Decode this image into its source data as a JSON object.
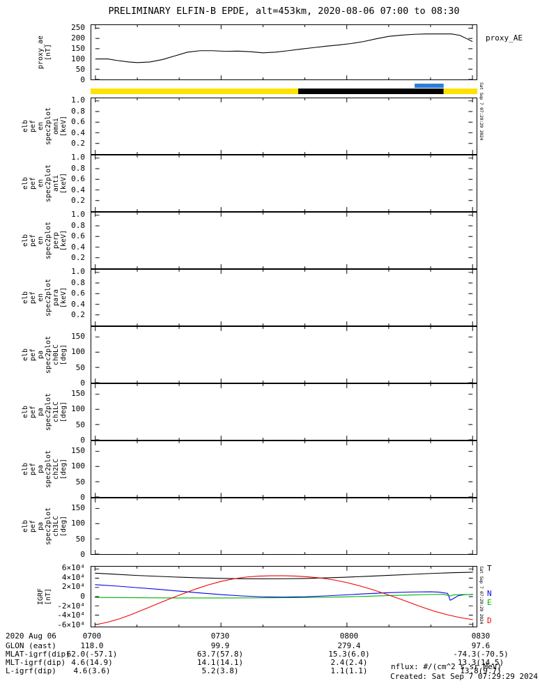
{
  "title": "PRELIMINARY ELFIN-B EPDE, alt=453km, 2020-08-06 07:00 to 08:30",
  "vertical_timestamp": "Sat Sep 7 07:29:29 2024",
  "footer": {
    "date": "2020 Aug 06",
    "xticks": [
      "0700",
      "0730",
      "0800",
      "0830"
    ],
    "rows": [
      {
        "label": "GLON (east)",
        "values": [
          "118.0",
          "99.9",
          "279.4",
          "97.6"
        ]
      },
      {
        "label": "MLAT-igrf(dip)",
        "values": [
          "62.0(-57.1)",
          "63.7(57.8)",
          "15.3(6.0)",
          "-74.3(-70.5)"
        ]
      },
      {
        "label": "MLT-igrf(dip)",
        "values": [
          "4.6(14.9)",
          "14.1(14.1)",
          "2.4(2.4)",
          "13.3(14.5)"
        ]
      },
      {
        "label": "L-igrf(dip)",
        "values": [
          "4.6(3.6)",
          "5.2(3.8)",
          "1.1(1.1)",
          "13.8(9.7)"
        ]
      }
    ],
    "nflux": "nflux: #/(cm^2 s sr MeV)",
    "created": "Created: Sat Sep  7 07:29:29 2024"
  },
  "chart_data": [
    {
      "id": "proxy_ae",
      "type": "line",
      "title": "proxy_AE",
      "ylabel": "proxy_ae [nT]",
      "xrange": [
        0,
        90
      ],
      "ylim": [
        0,
        265
      ],
      "xticks": [
        0,
        30,
        60,
        90
      ],
      "xticks_minor": [
        10,
        20,
        40,
        50,
        70,
        80
      ],
      "yticks": [
        {
          "v": 0,
          "l": "0"
        },
        {
          "v": 50,
          "l": "50"
        },
        {
          "v": 100,
          "l": "100"
        },
        {
          "v": 150,
          "l": "150"
        },
        {
          "v": 200,
          "l": "200"
        },
        {
          "v": 250,
          "l": "250"
        }
      ],
      "series": [
        {
          "name": "proxy_AE",
          "color": "#000000",
          "x": [
            0,
            3,
            5,
            8,
            10,
            13,
            16,
            19,
            22,
            25,
            28,
            31,
            34,
            37,
            40,
            43,
            46,
            49,
            52,
            55,
            58,
            61,
            64,
            67,
            70,
            73,
            76,
            79,
            82,
            85,
            87,
            89,
            90
          ],
          "y": [
            100,
            100,
            93,
            85,
            82,
            85,
            97,
            115,
            133,
            140,
            140,
            137,
            138,
            135,
            130,
            133,
            140,
            148,
            155,
            162,
            168,
            175,
            185,
            198,
            210,
            216,
            220,
            222,
            222,
            222,
            215,
            195,
            185
          ]
        }
      ]
    },
    {
      "id": "status_bar",
      "type": "segment-bar",
      "segments": [
        {
          "color": "#ffe100",
          "from": 0.0,
          "to": 0.537
        },
        {
          "color": "#000000",
          "from": 0.537,
          "to": 0.913
        },
        {
          "color": "#ffe100",
          "from": 0.913,
          "to": 1.0
        }
      ],
      "marker": {
        "color": "#2a7fd8",
        "from": 0.838,
        "to": 0.913
      }
    },
    {
      "id": "en_omni",
      "type": "line",
      "ylabel": "elb pef en spec2plot omni [keV]",
      "xrange": [
        0,
        90
      ],
      "ylim": [
        0,
        1.05
      ],
      "xticks": [
        0,
        30,
        60,
        90
      ],
      "xticks_minor": [
        10,
        20,
        40,
        50,
        70,
        80
      ],
      "yticks": [
        {
          "v": 0.2,
          "l": "0.2"
        },
        {
          "v": 0.4,
          "l": "0.4"
        },
        {
          "v": 0.6,
          "l": "0.6"
        },
        {
          "v": 0.8,
          "l": "0.8"
        },
        {
          "v": 1.0,
          "l": "1.0"
        }
      ],
      "series": []
    },
    {
      "id": "en_anti",
      "type": "line",
      "ylabel": "elb pef en spec2plot anti [keV]",
      "xrange": [
        0,
        90
      ],
      "ylim": [
        0,
        1.05
      ],
      "xticks": [
        0,
        30,
        60,
        90
      ],
      "xticks_minor": [
        10,
        20,
        40,
        50,
        70,
        80
      ],
      "yticks": [
        {
          "v": 0.2,
          "l": "0.2"
        },
        {
          "v": 0.4,
          "l": "0.4"
        },
        {
          "v": 0.6,
          "l": "0.6"
        },
        {
          "v": 0.8,
          "l": "0.8"
        },
        {
          "v": 1.0,
          "l": "1.0"
        }
      ],
      "series": []
    },
    {
      "id": "en_perp",
      "type": "line",
      "ylabel": "elb pef en spec2plot perp [keV]",
      "xrange": [
        0,
        90
      ],
      "ylim": [
        0,
        1.05
      ],
      "xticks": [
        0,
        30,
        60,
        90
      ],
      "xticks_minor": [
        10,
        20,
        40,
        50,
        70,
        80
      ],
      "yticks": [
        {
          "v": 0.2,
          "l": "0.2"
        },
        {
          "v": 0.4,
          "l": "0.4"
        },
        {
          "v": 0.6,
          "l": "0.6"
        },
        {
          "v": 0.8,
          "l": "0.8"
        },
        {
          "v": 1.0,
          "l": "1.0"
        }
      ],
      "series": []
    },
    {
      "id": "en_para",
      "type": "line",
      "ylabel": "elb pef en spec2plot para [keV]",
      "xrange": [
        0,
        90
      ],
      "ylim": [
        0,
        1.05
      ],
      "xticks": [
        0,
        30,
        60,
        90
      ],
      "xticks_minor": [
        10,
        20,
        40,
        50,
        70,
        80
      ],
      "yticks": [
        {
          "v": 0.2,
          "l": "0.2"
        },
        {
          "v": 0.4,
          "l": "0.4"
        },
        {
          "v": 0.6,
          "l": "0.6"
        },
        {
          "v": 0.8,
          "l": "0.8"
        },
        {
          "v": 1.0,
          "l": "1.0"
        }
      ],
      "series": []
    },
    {
      "id": "pa_ch0",
      "type": "line",
      "ylabel": "elb pef pa spec2plot ch0LC [deg]",
      "xrange": [
        0,
        90
      ],
      "ylim": [
        0,
        183
      ],
      "xticks": [
        0,
        30,
        60,
        90
      ],
      "xticks_minor": [
        10,
        20,
        40,
        50,
        70,
        80
      ],
      "yticks": [
        {
          "v": 0,
          "l": "0"
        },
        {
          "v": 50,
          "l": "50"
        },
        {
          "v": 100,
          "l": "100"
        },
        {
          "v": 150,
          "l": "150"
        }
      ],
      "series": []
    },
    {
      "id": "pa_ch1",
      "type": "line",
      "ylabel": "elb pef pa spec2plot ch1LC [deg]",
      "xrange": [
        0,
        90
      ],
      "ylim": [
        0,
        183
      ],
      "xticks": [
        0,
        30,
        60,
        90
      ],
      "xticks_minor": [
        10,
        20,
        40,
        50,
        70,
        80
      ],
      "yticks": [
        {
          "v": 0,
          "l": "0"
        },
        {
          "v": 50,
          "l": "50"
        },
        {
          "v": 100,
          "l": "100"
        },
        {
          "v": 150,
          "l": "150"
        }
      ],
      "series": []
    },
    {
      "id": "pa_ch2",
      "type": "line",
      "ylabel": "elb pef pa spec2plot ch2LC [deg]",
      "xrange": [
        0,
        90
      ],
      "ylim": [
        0,
        183
      ],
      "xticks": [
        0,
        30,
        60,
        90
      ],
      "xticks_minor": [
        10,
        20,
        40,
        50,
        70,
        80
      ],
      "yticks": [
        {
          "v": 0,
          "l": "0"
        },
        {
          "v": 50,
          "l": "50"
        },
        {
          "v": 100,
          "l": "100"
        },
        {
          "v": 150,
          "l": "150"
        }
      ],
      "series": []
    },
    {
      "id": "pa_ch3",
      "type": "line",
      "ylabel": "elb pef pa spec2plot ch3LC [deg]",
      "xrange": [
        0,
        90
      ],
      "ylim": [
        0,
        183
      ],
      "xticks": [
        0,
        30,
        60,
        90
      ],
      "xticks_minor": [
        10,
        20,
        40,
        50,
        70,
        80
      ],
      "yticks": [
        {
          "v": 0,
          "l": "0"
        },
        {
          "v": 50,
          "l": "50"
        },
        {
          "v": 100,
          "l": "100"
        },
        {
          "v": 150,
          "l": "150"
        }
      ],
      "series": []
    },
    {
      "id": "igrf",
      "type": "line",
      "ylabel": "IGRF [nT]",
      "xrange": [
        0,
        90
      ],
      "ylim": [
        -65000,
        65000
      ],
      "xticks": [
        0,
        30,
        60,
        90
      ],
      "xticks_minor": [
        10,
        20,
        40,
        50,
        70,
        80
      ],
      "xticks_labels": [
        "0700",
        "0730",
        "0800",
        "0830"
      ],
      "yticks": [
        {
          "v": 60000,
          "l": "6×10⁴"
        },
        {
          "v": 40000,
          "l": "4×10⁴"
        },
        {
          "v": 20000,
          "l": "2×10⁴"
        },
        {
          "v": 0,
          "l": "0"
        },
        {
          "v": -20000,
          "l": "-2×10⁴"
        },
        {
          "v": -40000,
          "l": "-4×10⁴"
        },
        {
          "v": -60000,
          "l": "-6×10⁴"
        }
      ],
      "series": [
        {
          "name": "T",
          "color": "#000000",
          "x": [
            0,
            5,
            10,
            15,
            20,
            25,
            30,
            35,
            40,
            45,
            50,
            55,
            60,
            65,
            70,
            75,
            80,
            85,
            90
          ],
          "y": [
            51000,
            48500,
            46000,
            44000,
            42200,
            40800,
            39600,
            38900,
            38500,
            38700,
            39500,
            40700,
            42300,
            44200,
            46200,
            48200,
            50200,
            51800,
            53000
          ]
        },
        {
          "name": "N",
          "color": "#0000ee",
          "x": [
            0,
            5,
            10,
            15,
            20,
            25,
            30,
            35,
            40,
            45,
            50,
            55,
            60,
            65,
            70,
            75,
            80,
            82,
            84,
            84.6,
            85.4,
            86.5,
            88,
            90
          ],
          "y": [
            26000,
            23000,
            19500,
            16000,
            12000,
            8000,
            4500,
            1500,
            -600,
            -1100,
            -300,
            1500,
            4000,
            6500,
            8600,
            10000,
            10500,
            9800,
            7000,
            -8000,
            -4000,
            2000,
            4200,
            5000
          ]
        },
        {
          "name": "E",
          "color": "#00b300",
          "x": [
            0,
            10,
            20,
            30,
            40,
            50,
            55,
            60,
            65,
            70,
            75,
            80,
            83,
            84.6,
            85.4,
            87,
            90
          ],
          "y": [
            -1800,
            -2400,
            -2900,
            -3000,
            -2600,
            -2000,
            -1500,
            -500,
            900,
            2300,
            3600,
            4800,
            5000,
            1500,
            3800,
            4400,
            4600
          ]
        },
        {
          "name": "D",
          "color": "#ee0000",
          "x": [
            0,
            3,
            6,
            9,
            12,
            15,
            18,
            21,
            24,
            27,
            30,
            33,
            36,
            39,
            42,
            45,
            48,
            51,
            54,
            57,
            60,
            63,
            66,
            69,
            72,
            75,
            78,
            81,
            84,
            87,
            90
          ],
          "y": [
            -61000,
            -55500,
            -47500,
            -37500,
            -26500,
            -15000,
            -4000,
            6500,
            16500,
            25500,
            33000,
            38500,
            42500,
            44500,
            45200,
            45200,
            44500,
            42800,
            40000,
            36000,
            30500,
            23500,
            15500,
            6500,
            -3000,
            -13000,
            -23000,
            -32000,
            -39500,
            -45500,
            -50000
          ]
        }
      ]
    }
  ]
}
